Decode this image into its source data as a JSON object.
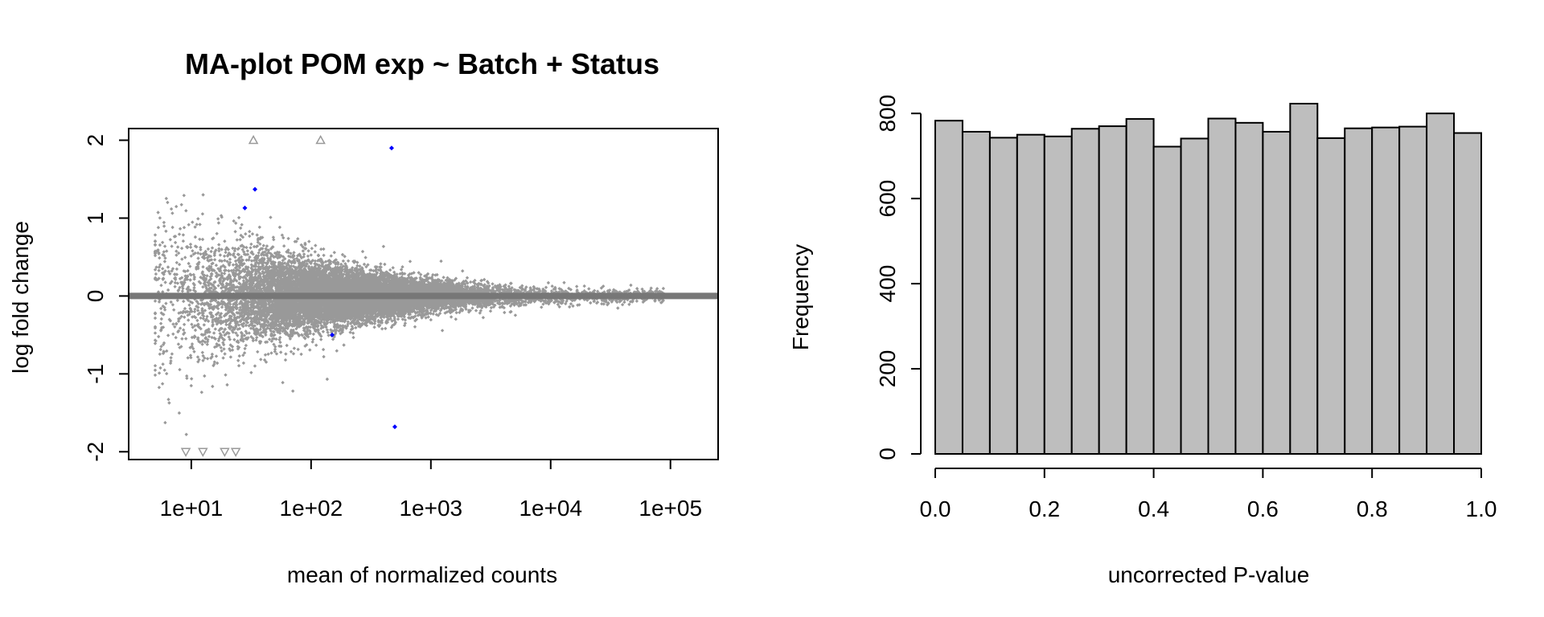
{
  "chart_data": [
    {
      "type": "scatter",
      "title": "MA-plot POM exp ~ Batch + Status",
      "xlabel": "mean of normalized counts",
      "ylabel": "log fold change",
      "x_scale": "log10",
      "xlim": [
        3,
        250000
      ],
      "ylim": [
        -2.1,
        2.15
      ],
      "x_ticks": [
        10,
        100,
        1000,
        10000,
        100000
      ],
      "x_tick_labels": [
        "1e+01",
        "1e+02",
        "1e+03",
        "1e+04",
        "1e+05"
      ],
      "y_ticks": [
        -2,
        -1,
        0,
        1,
        2
      ],
      "y_tick_labels": [
        "-2",
        "-1",
        "0",
        "1",
        "2"
      ],
      "reference_line": {
        "y": 0,
        "color": "#777777"
      },
      "colors": {
        "not_significant": "#999999",
        "significant": "#0000ff",
        "out_of_range": "#999999"
      },
      "significant_points": [
        {
          "x": 28,
          "y": 1.13
        },
        {
          "x": 34,
          "y": 1.37
        },
        {
          "x": 470,
          "y": 1.9
        },
        {
          "x": 150,
          "y": -0.5
        },
        {
          "x": 500,
          "y": -1.68
        }
      ],
      "out_of_range_points": [
        {
          "x": 33,
          "y": 2,
          "direction": "up"
        },
        {
          "x": 120,
          "y": 2,
          "direction": "up"
        },
        {
          "x": 9,
          "y": -2,
          "direction": "down"
        },
        {
          "x": 12.5,
          "y": -2,
          "direction": "down"
        },
        {
          "x": 19,
          "y": -2,
          "direction": "down"
        },
        {
          "x": 23.5,
          "y": -2,
          "direction": "down"
        }
      ],
      "background_points": {
        "description_of_distribution": "dense cloud of non-significant genes, spread narrowing with increasing mean",
        "x_range": [
          5,
          90000
        ],
        "approximate_count": 13800
      }
    },
    {
      "type": "bar",
      "subtype": "histogram",
      "title": "",
      "xlabel": "uncorrected P-value",
      "ylabel": "Frequency",
      "xlim": [
        0,
        1
      ],
      "ylim": [
        0,
        830
      ],
      "x_ticks": [
        0,
        0.2,
        0.4,
        0.6,
        0.8,
        1.0
      ],
      "x_tick_labels": [
        "0.0",
        "0.2",
        "0.4",
        "0.6",
        "0.8",
        "1.0"
      ],
      "y_ticks": [
        0,
        200,
        400,
        600,
        800
      ],
      "y_tick_labels": [
        "0",
        "200",
        "400",
        "600",
        "800"
      ],
      "bin_width": 0.05,
      "bin_starts": [
        0,
        0.05,
        0.1,
        0.15,
        0.2,
        0.25,
        0.3,
        0.35,
        0.4,
        0.45,
        0.5,
        0.55,
        0.6,
        0.65,
        0.7,
        0.75,
        0.8,
        0.85,
        0.9,
        0.95
      ],
      "values": [
        783,
        757,
        743,
        750,
        746,
        764,
        770,
        787,
        722,
        741,
        788,
        778,
        757,
        823,
        742,
        765,
        767,
        769,
        800,
        754
      ],
      "bar_color": "#bebebe",
      "edge_color": "#000000"
    }
  ]
}
